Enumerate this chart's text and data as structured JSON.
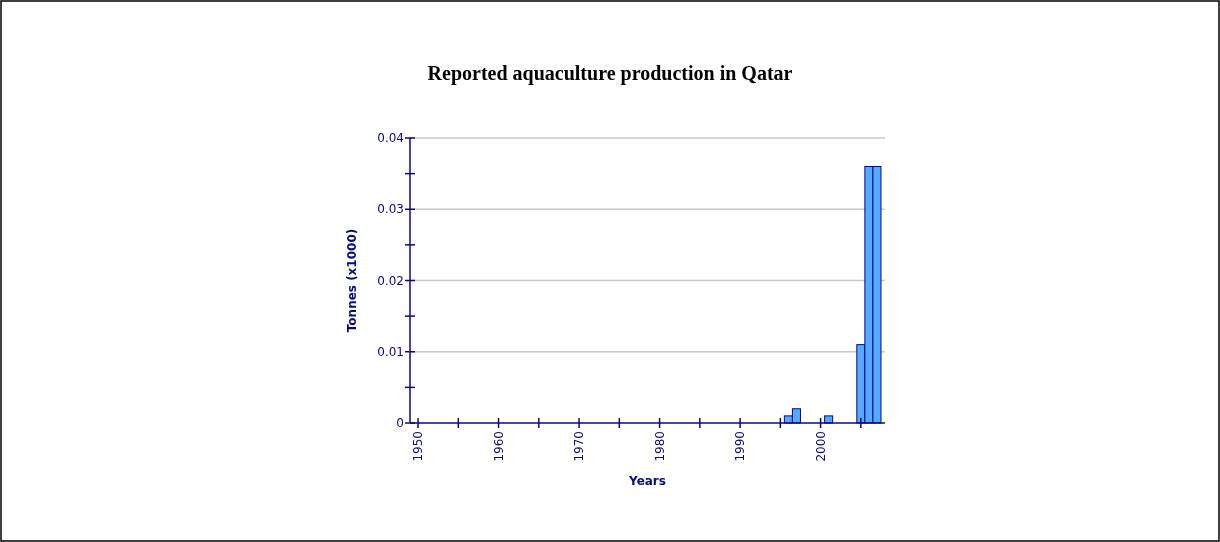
{
  "chart_data": {
    "type": "bar",
    "title": "Reported aquaculture production in Qatar",
    "xlabel": "Years",
    "ylabel": "Tonnes (x1000)",
    "x": [
      1996,
      1997,
      2001,
      2005,
      2006,
      2007
    ],
    "values": [
      0.001,
      0.002,
      0.001,
      0.011,
      0.036,
      0.036
    ],
    "color": "#55aaff",
    "xlim": [
      1949,
      2008
    ],
    "xticks": [
      1950,
      {
        "value": 1955,
        "label": null
      },
      1960,
      {
        "value": 1965,
        "label": null
      },
      1970,
      {
        "value": 1975,
        "label": null
      },
      1980,
      {
        "value": 1985,
        "label": null
      },
      1990,
      {
        "value": 1995,
        "label": null
      },
      2000,
      {
        "value": 2005,
        "label": null
      }
    ],
    "ylim": [
      0,
      0.04
    ],
    "yticks": [
      0,
      {
        "value": 0.005,
        "label": null
      },
      0.01,
      {
        "value": 0.015,
        "label": null
      },
      0.02,
      {
        "value": 0.025,
        "label": null
      },
      0.03,
      {
        "value": 0.035,
        "label": null
      },
      0.04
    ],
    "grid": "y"
  }
}
